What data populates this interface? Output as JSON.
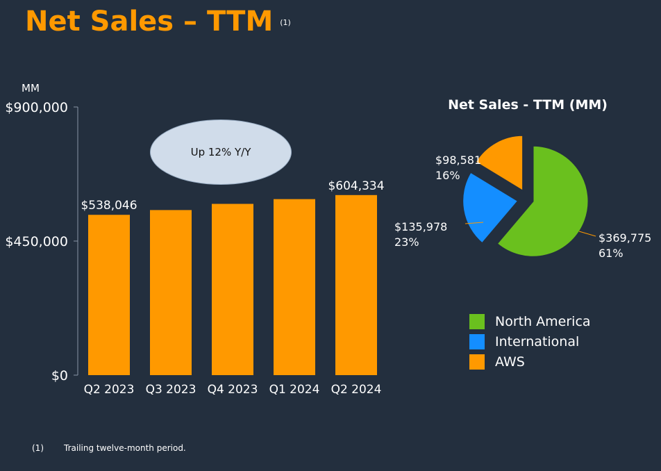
{
  "title": "Net Sales – TTM",
  "title_note": "(1)",
  "footnote": {
    "mark": "(1)",
    "text": "Trailing twelve-month period."
  },
  "callout": "Up 12% Y/Y",
  "chart_data": [
    {
      "type": "bar",
      "unit_label": "MM",
      "categories": [
        "Q2 2023",
        "Q3 2023",
        "Q4 2023",
        "Q1 2024",
        "Q2 2024"
      ],
      "values": [
        538046,
        554028,
        574785,
        590740,
        604334
      ],
      "data_labels": [
        "$538,046",
        "",
        "",
        "",
        "$604,334"
      ],
      "y_ticks": [
        "$0",
        "$450,000",
        "$900,000"
      ],
      "ylim": [
        0,
        900000
      ],
      "grid": false,
      "bar_color": "#ff9900"
    },
    {
      "type": "pie",
      "title": "Net Sales - TTM (MM)",
      "slices": [
        {
          "name": "North America",
          "value": 369775,
          "label": "$369,775",
          "percent": "61%",
          "color": "#6ac01e"
        },
        {
          "name": "International",
          "value": 135978,
          "label": "$135,978",
          "percent": "23%",
          "color": "#148eff"
        },
        {
          "name": "AWS",
          "value": 98581,
          "label": "$98,581",
          "percent": "16%",
          "color": "#ff9900"
        }
      ],
      "legend_position": "bottom"
    }
  ]
}
